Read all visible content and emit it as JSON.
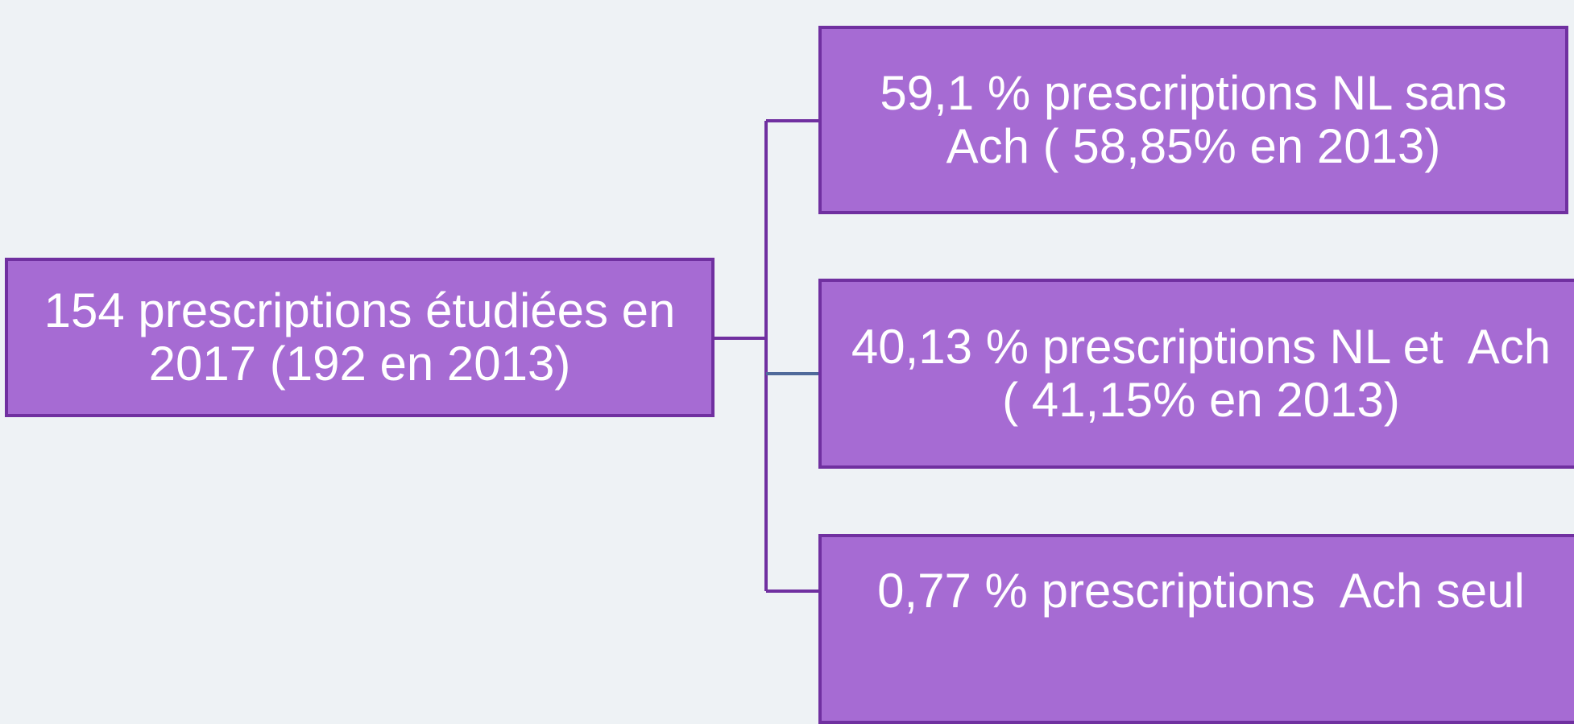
{
  "root": {
    "lines": [
      "154 prescriptions étudiées en",
      "2017 (192 en 2013)"
    ]
  },
  "nodes": [
    {
      "lines": [
        "59,1 % prescriptions NL sans",
        "Ach ( 58,85% en 2013)"
      ]
    },
    {
      "lines": [
        "40,13 % prescriptions NL et  Ach",
        "( 41,15% en 2013)"
      ]
    },
    {
      "lines": [
        "0,77 % prescriptions  Ach seul"
      ]
    }
  ]
}
